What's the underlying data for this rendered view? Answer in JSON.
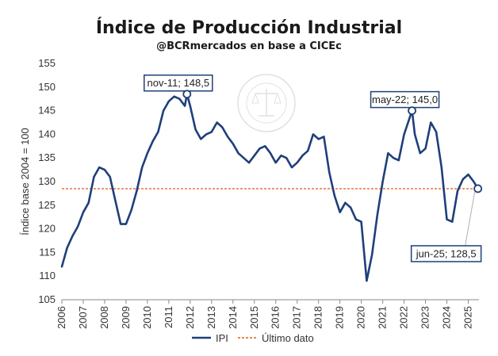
{
  "chart_data": {
    "type": "line",
    "title": "Índice de Producción Industrial",
    "subtitle": "@BCRmercados en base a CICEc",
    "ylabel": "Índice base 2004 = 100",
    "xlabel": "",
    "ylim": [
      105,
      155
    ],
    "yticks": [
      105,
      110,
      115,
      120,
      125,
      130,
      135,
      140,
      145,
      150,
      155
    ],
    "xlim": [
      2006,
      2025.5
    ],
    "xticks": [
      "2006",
      "2007",
      "2008",
      "2009",
      "2010",
      "2011",
      "2012",
      "2013",
      "2014",
      "2015",
      "2016",
      "2017",
      "2018",
      "2019",
      "2020",
      "2021",
      "2022",
      "2023",
      "2024",
      "2025"
    ],
    "grid": false,
    "legend_position": "bottom",
    "series": [
      {
        "name": "IPI",
        "color": "#1f3f7a",
        "x": [
          2006.0,
          2006.25,
          2006.5,
          2006.75,
          2007.0,
          2007.25,
          2007.5,
          2007.75,
          2008.0,
          2008.25,
          2008.5,
          2008.75,
          2009.0,
          2009.25,
          2009.5,
          2009.75,
          2010.0,
          2010.25,
          2010.5,
          2010.75,
          2011.0,
          2011.25,
          2011.5,
          2011.75,
          2011.85,
          2012.0,
          2012.25,
          2012.5,
          2012.75,
          2013.0,
          2013.25,
          2013.5,
          2013.75,
          2014.0,
          2014.25,
          2014.5,
          2014.75,
          2015.0,
          2015.25,
          2015.5,
          2015.75,
          2016.0,
          2016.25,
          2016.5,
          2016.75,
          2017.0,
          2017.25,
          2017.5,
          2017.75,
          2018.0,
          2018.25,
          2018.5,
          2018.75,
          2019.0,
          2019.25,
          2019.5,
          2019.75,
          2020.0,
          2020.25,
          2020.5,
          2020.75,
          2021.0,
          2021.25,
          2021.5,
          2021.75,
          2022.0,
          2022.37,
          2022.5,
          2022.75,
          2023.0,
          2023.25,
          2023.5,
          2023.75,
          2024.0,
          2024.25,
          2024.5,
          2024.75,
          2025.0,
          2025.25,
          2025.45
        ],
        "y": [
          112,
          116,
          118.5,
          120.5,
          123.5,
          125.5,
          131,
          133,
          132.5,
          131,
          126,
          121,
          121,
          124,
          128,
          133,
          136,
          138.5,
          140.5,
          145,
          147,
          148,
          147.5,
          146,
          148.5,
          146,
          141,
          139,
          140,
          140.5,
          142.5,
          141.5,
          139.5,
          138,
          136,
          135,
          134,
          135.5,
          137,
          137.5,
          136,
          134,
          135.5,
          135,
          133,
          134,
          135.5,
          136.5,
          140,
          139,
          139.5,
          132,
          127,
          123.5,
          125.5,
          124.5,
          122,
          121.5,
          109,
          114.5,
          123,
          130,
          136,
          135,
          134.5,
          140,
          145,
          140,
          136,
          137,
          142.5,
          140.5,
          133,
          122,
          121.5,
          128,
          130.5,
          131.5,
          130,
          128.5
        ]
      }
    ],
    "reference_lines": [
      {
        "name": "Último dato",
        "value": 128.5,
        "color": "#e8743b",
        "style": "dotted"
      }
    ],
    "annotations": [
      {
        "text": "nov-11; 148,5",
        "x": 2011.85,
        "y": 148.5
      },
      {
        "text": "may-22; 145,0",
        "x": 2022.37,
        "y": 145.0
      },
      {
        "text": "jun-25; 128,5",
        "x": 2025.45,
        "y": 128.5
      }
    ],
    "watermark": "BOLSA DE COMERCIO DE ROSARIO"
  }
}
